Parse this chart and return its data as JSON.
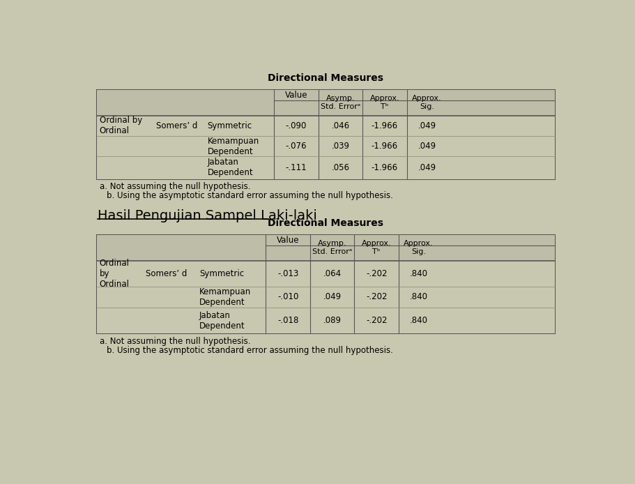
{
  "bg_color": "#c8c8b0",
  "title1": "Directional Measures",
  "title2": "Directional Measures",
  "section_title": "Hasil Pengujian Sampel Laki-laki",
  "footnote_a": "a. Not assuming the null hypothesis.",
  "footnote_b": "b. Using the asymptotic standard error assuming the null hypothesis.",
  "col_headers": [
    "Value",
    "Asymp.\nStd. Errorᵃ",
    "Approx.\nTᵇ",
    "Approx.\nSig."
  ],
  "table1": {
    "row_labels": [
      [
        "Ordinal by\nOrdinal",
        "Somers’ d",
        "Symmetric"
      ],
      [
        "",
        "",
        "Kemampuan\nDependent"
      ],
      [
        "",
        "",
        "Jabatan\nDependent"
      ]
    ],
    "values": [
      [
        "-.090",
        ".046",
        "-1.966",
        ".049"
      ],
      [
        "-.076",
        ".039",
        "-1.966",
        ".049"
      ],
      [
        "-.111",
        ".056",
        "-1.966",
        ".049"
      ]
    ]
  },
  "table2": {
    "row_labels": [
      [
        "Ordinal\nby\nOrdinal",
        "Somers’ d",
        "Symmetric"
      ],
      [
        "",
        "",
        "Kemampuan\nDependent"
      ],
      [
        "",
        "",
        "Jabatan\nDependent"
      ]
    ],
    "values": [
      [
        "-.013",
        ".064",
        "-.202",
        ".840"
      ],
      [
        "-.010",
        ".049",
        "-.202",
        ".840"
      ],
      [
        "-.018",
        ".089",
        "-.202",
        ".840"
      ]
    ]
  }
}
